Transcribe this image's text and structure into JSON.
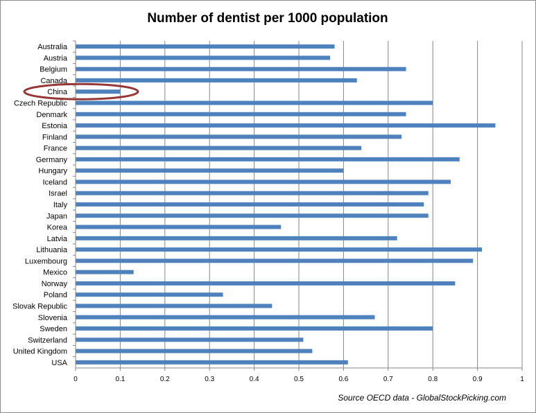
{
  "chart_data": {
    "type": "bar",
    "orientation": "horizontal",
    "title": "Number of dentist per 1000 population",
    "source": "Source OECD data - GlobalStockPicking.com",
    "categories": [
      "Australia",
      "Austria",
      "Belgium",
      "Canada",
      "China",
      "Czech Republic",
      "Denmark",
      "Estonia",
      "Finland",
      "France",
      "Germany",
      "Hungary",
      "Iceland",
      "Israel",
      "Italy",
      "Japan",
      "Korea",
      "Latvia",
      "Lithuania",
      "Luxembourg",
      "Mexico",
      "Norway",
      "Poland",
      "Slovak Republic",
      "Slovenia",
      "Sweden",
      "Switzerland",
      "United Kingdom",
      "USA"
    ],
    "values": [
      0.58,
      0.57,
      0.74,
      0.63,
      0.1,
      0.8,
      0.74,
      0.94,
      0.73,
      0.64,
      0.86,
      0.6,
      0.84,
      0.79,
      0.78,
      0.79,
      0.46,
      0.72,
      0.91,
      0.89,
      0.13,
      0.85,
      0.33,
      0.44,
      0.67,
      0.8,
      0.51,
      0.53,
      0.61
    ],
    "xlim": [
      0,
      1
    ],
    "xticks": [
      "0",
      "0.1",
      "0.2",
      "0.3",
      "0.4",
      "0.5",
      "0.6",
      "0.7",
      "0.8",
      "0.9",
      "1"
    ],
    "xlabel": "",
    "ylabel": "",
    "grid": "vertical",
    "legend": "none",
    "highlighted_category": "China",
    "colors": {
      "bar": "#4f81bd",
      "grid": "#868686",
      "highlight_ellipse": "#953735"
    }
  }
}
